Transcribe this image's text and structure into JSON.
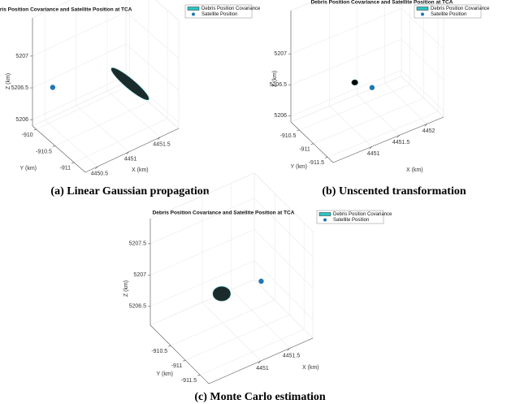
{
  "chart_data": [
    {
      "type": "scatter3d",
      "title": "Debris Position Covariance and Satellite Position at TCA",
      "caption": "(a) Linear Gaussian propagation",
      "xlabel": "X (km)",
      "ylabel": "Y (km)",
      "zlabel": "Z (km)",
      "xlim": [
        4450.3,
        4451.8
      ],
      "ylim": [
        -911.3,
        -909.9
      ],
      "zlim": [
        5205.9,
        5207.6
      ],
      "xticks": [
        4450.5,
        4451,
        4451.5
      ],
      "yticks": [
        -911,
        -910.5,
        -910
      ],
      "zticks": [
        5206,
        5206.5,
        5207
      ],
      "grid": true,
      "series": [
        {
          "name": "Debris Position Covariance",
          "color": "#2ec4c4",
          "x": [
            4451.2
          ],
          "y": [
            -911.0
          ],
          "z": [
            5206.72
          ]
        },
        {
          "name": "Satellite Position",
          "color": "#1f77b4",
          "x": [
            4450.6
          ],
          "y": [
            -909.94
          ],
          "z": [
            5206.39
          ]
        }
      ]
    },
    {
      "type": "scatter3d",
      "title": "Debris Position Covariance and Satellite Position at TCA",
      "caption": "(b) Unscented transformation",
      "xlabel": "X (km)",
      "ylabel": "Y (km)",
      "zlabel": "Z (km)",
      "xlim": [
        4450.3,
        4452.3
      ],
      "ylim": [
        -911.7,
        -910.2
      ],
      "zlim": [
        5205.9,
        5207.7
      ],
      "xticks": [
        4451,
        4451.5,
        4452
      ],
      "yticks": [
        -911.5,
        -911,
        -910.5
      ],
      "zticks": [
        5206,
        5206.5,
        5207
      ],
      "grid": true,
      "series": [
        {
          "name": "Debris Position Covariance",
          "color": "#2ec4c4",
          "x": [
            4451.1
          ],
          "y": [
            -910.9
          ],
          "z": [
            5206.55
          ]
        },
        {
          "name": "Satellite Position",
          "color": "#1f77b4",
          "x": [
            4451.3
          ],
          "y": [
            -911.12
          ],
          "z": [
            5206.49
          ]
        }
      ]
    },
    {
      "type": "scatter3d",
      "title": "Debris Position Covariance and Satellite Position at TCA",
      "caption": "(c) Monte Carlo estimation",
      "xlabel": "X (km)",
      "ylabel": "Y (km)",
      "zlabel": "Z (km)",
      "xlim": [
        4450.1,
        4451.9
      ],
      "ylim": [
        -911.8,
        -909.8
      ],
      "zlim": [
        5206.2,
        5207.9
      ],
      "xticks": [
        4451,
        4451.5
      ],
      "yticks": [
        -911.5,
        -911,
        -910.5
      ],
      "zticks": [
        5206.5,
        5207,
        5207.5
      ],
      "grid": true,
      "series": [
        {
          "name": "Debris Position Covariance",
          "color": "#2ec4c4",
          "x": [
            4450.9
          ],
          "y": [
            -910.66
          ],
          "z": [
            5206.78
          ]
        },
        {
          "name": "Satellite Position",
          "color": "#1f77b4",
          "x": [
            4451.3
          ],
          "y": [
            -911.22
          ],
          "z": [
            5207.08
          ]
        }
      ]
    }
  ]
}
